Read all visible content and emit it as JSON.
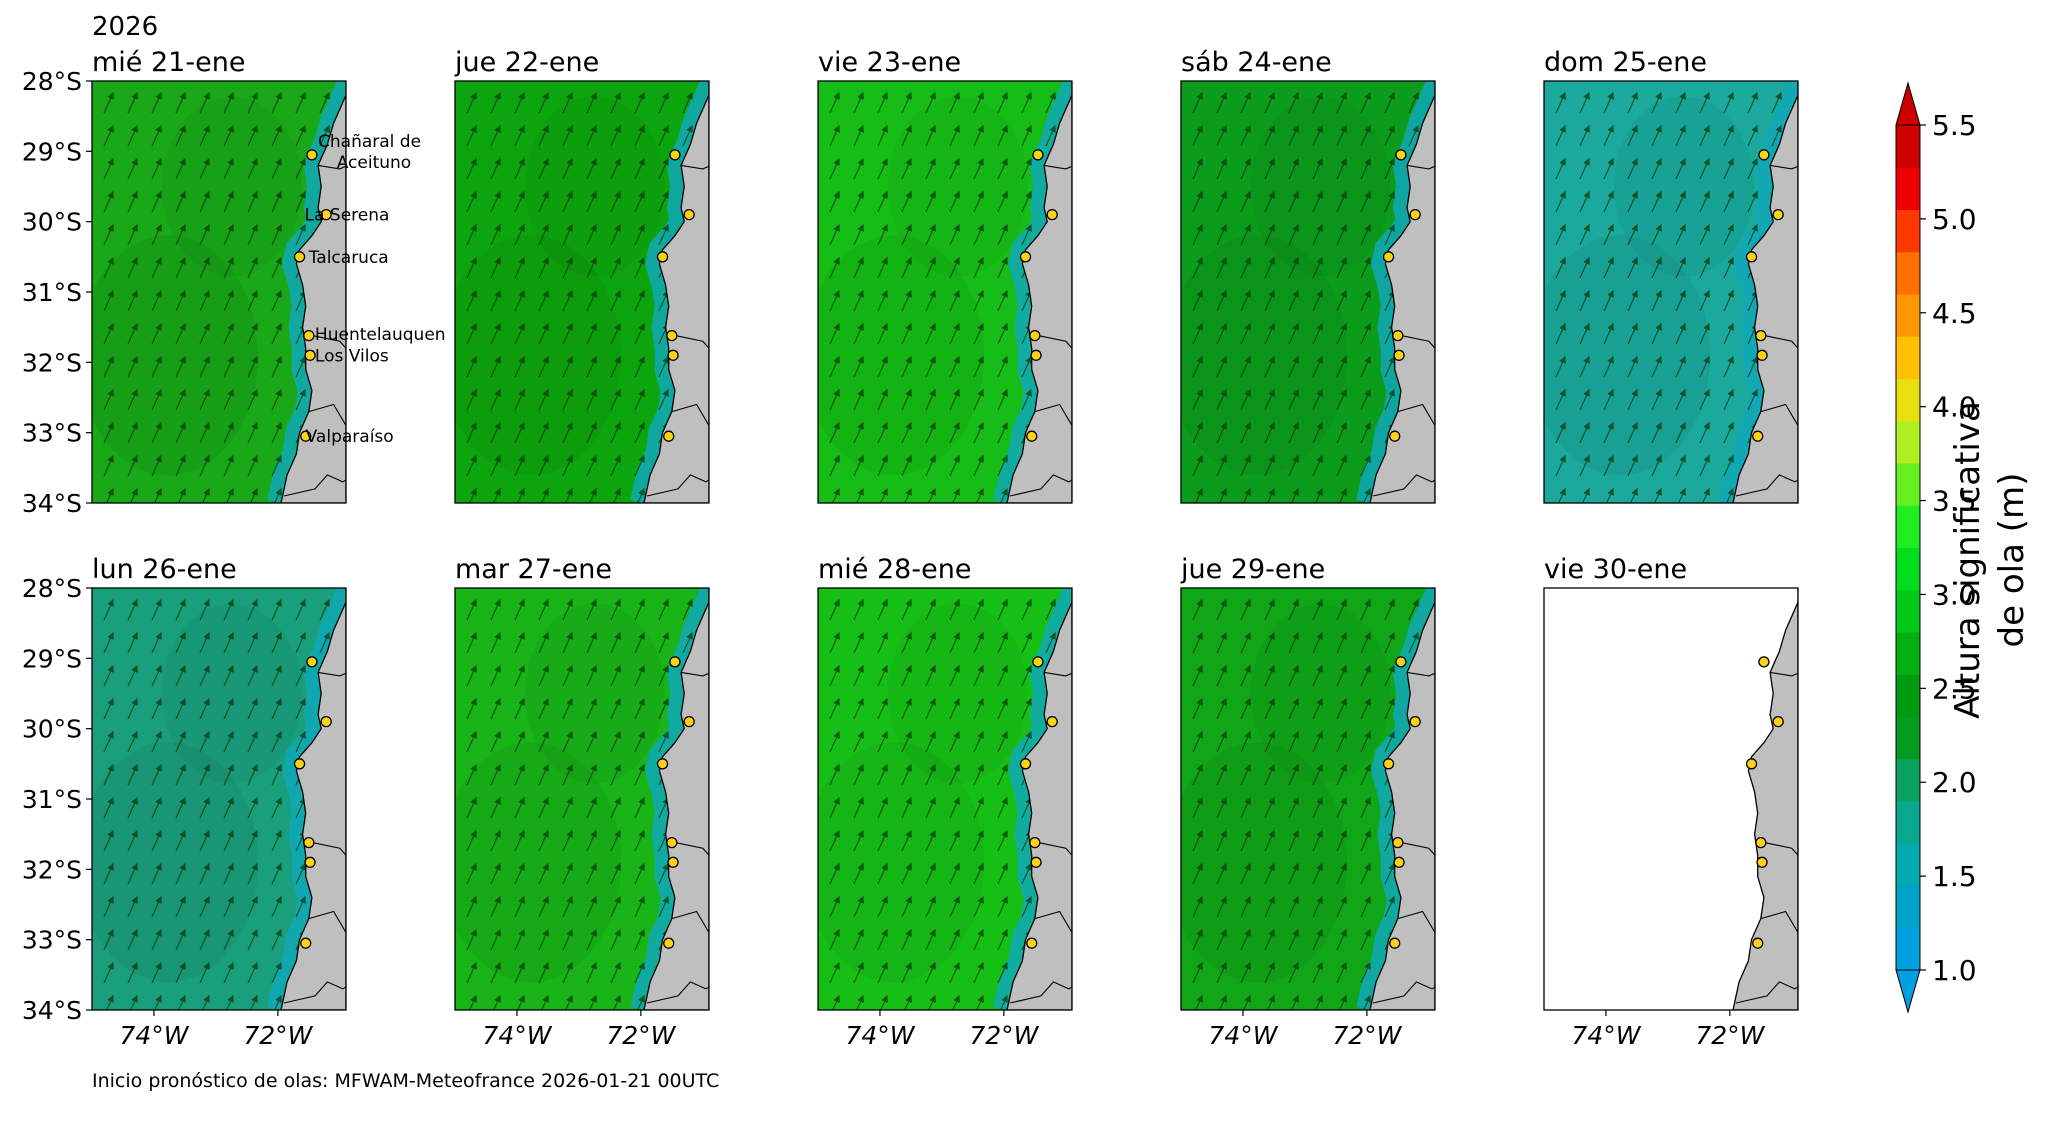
{
  "figure": {
    "year": "2026",
    "footer": "Inicio pronóstico de olas: MFWAM-Meteofrance 2026-01-21 00UTC",
    "colorbar_title_line1": "Altura significativa",
    "colorbar_title_line2": "de ola (m)"
  },
  "panels": [
    {
      "title": "mié 21-ene",
      "fill": "#18a818",
      "variant": "first"
    },
    {
      "title": "jue 22-ene",
      "fill": "#0da50d",
      "variant": "plain"
    },
    {
      "title": "vie 23-ene",
      "fill": "#16bd16",
      "variant": "plain"
    },
    {
      "title": "sáb 24-ene",
      "fill": "#0c9c1c",
      "variant": "plain"
    },
    {
      "title": "dom 25-ene",
      "fill": "#1aa99c",
      "variant": "plain"
    },
    {
      "title": "lun 26-ene",
      "fill": "#1a9f7c",
      "variant": "plain"
    },
    {
      "title": "mar 27-ene",
      "fill": "#18b418",
      "variant": "plain"
    },
    {
      "title": "mié 28-ene",
      "fill": "#16bf16",
      "variant": "plain"
    },
    {
      "title": "jue 29-ene",
      "fill": "#10a618",
      "variant": "plain"
    },
    {
      "title": "vie 30-ene",
      "fill": "#ffffff",
      "variant": "empty"
    }
  ],
  "axes": {
    "lat_ticks": [
      "28°S",
      "29°S",
      "30°S",
      "31°S",
      "32°S",
      "33°S",
      "34°S"
    ],
    "lon_ticks": [
      "74°W",
      "72°W"
    ]
  },
  "places": [
    "Chañaral de Aceituno",
    "La Serena",
    "Talcaruca",
    "Huentelauquen",
    "Los Vilos",
    "Valparaíso"
  ],
  "place_labels": [
    {
      "name": "Chañaral de",
      "lat": -28.85
    },
    {
      "name": "Aceituno",
      "lat": -29.15
    },
    {
      "name": "La Serena",
      "lat": -29.9
    },
    {
      "name": "Talcaruca",
      "lat": -30.5
    },
    {
      "name": "Huentelauquen",
      "lat": -31.6
    },
    {
      "name": "Los Vilos",
      "lat": -31.9
    },
    {
      "name": "Valparaíso",
      "lat": -33.05
    }
  ],
  "colorbar": {
    "min": 1.0,
    "max": 5.5,
    "ticks": [
      "1.0",
      "1.5",
      "2.0",
      "2.5",
      "3.0",
      "3.5",
      "4.0",
      "4.5",
      "5.0",
      "5.5"
    ],
    "colors": [
      "#009fe0",
      "#00a3c8",
      "#04a8b0",
      "#08a890",
      "#0aa060",
      "#059a20",
      "#009a10",
      "#00b010",
      "#00c818",
      "#00de1e",
      "#20ee20",
      "#66f020",
      "#b0f020",
      "#e8e010",
      "#ffc000",
      "#ff9800",
      "#ff6e00",
      "#ff3800",
      "#ee0000",
      "#cc0000"
    ]
  }
}
